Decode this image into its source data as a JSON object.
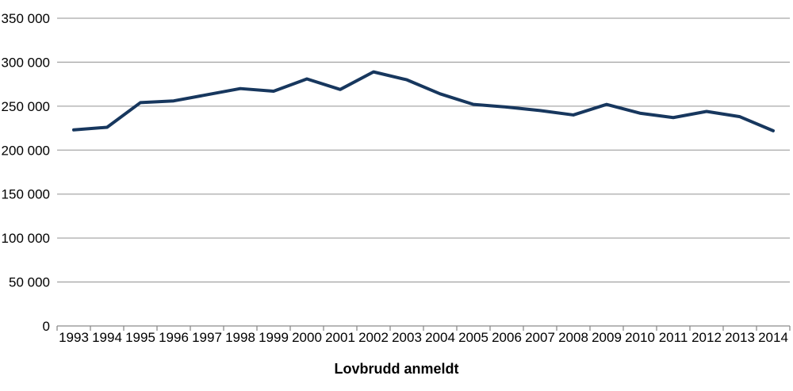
{
  "chart_data": {
    "type": "line",
    "title": "",
    "xlabel": "Lovbrudd anmeldt",
    "ylabel": "",
    "categories": [
      "1993",
      "1994",
      "1995",
      "1996",
      "1997",
      "1998",
      "1999",
      "2000",
      "2001",
      "2002",
      "2003",
      "2004",
      "2005",
      "2006",
      "2007",
      "2008",
      "2009",
      "2010",
      "2011",
      "2012",
      "2013",
      "2014"
    ],
    "series": [
      {
        "name": "Lovbrudd anmeldt",
        "values": [
          223000,
          226000,
          254000,
          256000,
          263000,
          270000,
          267000,
          281000,
          269000,
          289000,
          280000,
          264000,
          252000,
          249000,
          245000,
          240000,
          252000,
          242000,
          237000,
          244000,
          238000,
          222000
        ]
      }
    ],
    "ylim": [
      0,
      350000
    ],
    "ytick_interval": 50000,
    "ytick_labels": [
      "0",
      "50 000",
      "100 000",
      "150 000",
      "200 000",
      "250 000",
      "300 000",
      "350 000"
    ],
    "grid": true,
    "legend_position": "none",
    "colors": {
      "line": "#17375E",
      "gridline": "#A8A8A8",
      "axis": "#8C8C8C",
      "text": "#000000",
      "background": "#FFFFFF"
    }
  }
}
